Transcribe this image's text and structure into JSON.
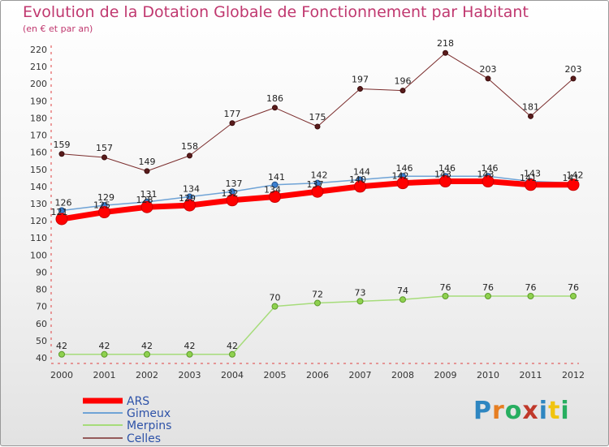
{
  "header": {
    "title": "Evolution de la Dotation Globale de Fonctionnement par Habitant",
    "subtitle": "(en € et par an)"
  },
  "logo": {
    "text": "Proxiti",
    "letters": [
      {
        "ch": "P",
        "color": "#2e86c1"
      },
      {
        "ch": "r",
        "color": "#e67e22"
      },
      {
        "ch": "o",
        "color": "#27ae60"
      },
      {
        "ch": "x",
        "color": "#c0392b"
      },
      {
        "ch": "i",
        "color": "#2e86c1"
      },
      {
        "ch": "t",
        "color": "#f1c40f"
      },
      {
        "ch": "i",
        "color": "#27ae60"
      }
    ]
  },
  "chart_data": {
    "type": "line",
    "title": "Evolution de la Dotation Globale de Fonctionnement par Habitant",
    "subtitle": "(en € et par an)",
    "xlabel": "",
    "ylabel": "",
    "ylim": [
      40,
      220
    ],
    "yticks": [
      40,
      50,
      60,
      70,
      80,
      90,
      100,
      110,
      120,
      130,
      140,
      150,
      160,
      170,
      180,
      190,
      200,
      210,
      220
    ],
    "grid": false,
    "categories": [
      "2000",
      "2001",
      "2002",
      "2003",
      "2004",
      "2005",
      "2006",
      "2007",
      "2008",
      "2009",
      "2010",
      "2011",
      "2012"
    ],
    "series": [
      {
        "name": "ARS",
        "color": "#ff0000",
        "values": [
          121,
          125,
          128,
          129,
          132,
          134,
          137,
          140,
          142,
          143,
          143,
          141,
          141
        ]
      },
      {
        "name": "Gimeux",
        "color": "#6fa3d6",
        "values": [
          126,
          129,
          131,
          134,
          137,
          141,
          142,
          144,
          146,
          146,
          146,
          143,
          142
        ]
      },
      {
        "name": "Merpins",
        "color": "#a6dc7a",
        "values": [
          42,
          42,
          42,
          42,
          42,
          70,
          72,
          73,
          74,
          76,
          76,
          76,
          76
        ]
      },
      {
        "name": "Celles",
        "color": "#7b2d2d",
        "values": [
          159,
          157,
          149,
          158,
          177,
          186,
          175,
          197,
          196,
          218,
          203,
          181,
          203
        ]
      }
    ],
    "legend_position": "bottom-left"
  }
}
